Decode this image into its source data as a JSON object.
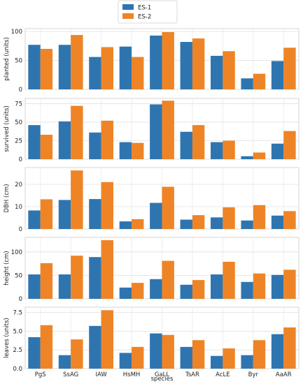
{
  "chart_data": {
    "type": "bar",
    "xlabel": "species",
    "categories": [
      "PgS",
      "SsAG",
      "IAW",
      "HsMH",
      "GaLL",
      "TsAR",
      "AcLE",
      "Byr",
      "AaAR"
    ],
    "legend": {
      "placement": "top-center",
      "entries": [
        {
          "name": "ES-1",
          "color": "#2e75b0"
        },
        {
          "name": "ES-2",
          "color": "#ee8426"
        }
      ]
    },
    "grid": true,
    "panels": [
      {
        "ylabel": "planted (units)",
        "ylim": [
          0,
          105
        ],
        "yticks": [
          0,
          50,
          100
        ],
        "yticklabels": [
          "0",
          "50",
          "100"
        ],
        "series": [
          {
            "name": "ES-1",
            "values": [
              77,
              77,
              56,
              74,
              93,
              82,
              58,
              19,
              49
            ]
          },
          {
            "name": "ES-2",
            "values": [
              70,
              94,
              73,
              56,
              99,
              88,
              66,
              27,
              72
            ]
          }
        ]
      },
      {
        "ylabel": "survived (units)",
        "ylim": [
          0,
          82
        ],
        "yticks": [
          0,
          25,
          50,
          75
        ],
        "yticklabels": [
          "0",
          "25",
          "50",
          "75"
        ],
        "series": [
          {
            "name": "ES-1",
            "values": [
              46,
              51,
              36,
              23,
              74,
              37,
              23,
              4,
              21
            ]
          },
          {
            "name": "ES-2",
            "values": [
              33,
              72,
              52,
              22,
              79,
              46,
              25,
              9,
              38
            ]
          }
        ]
      },
      {
        "ylabel": "DBH (cm)",
        "ylim": [
          0,
          27.5
        ],
        "yticks": [
          0,
          10,
          20
        ],
        "yticklabels": [
          "0",
          "10",
          "20"
        ],
        "series": [
          {
            "name": "ES-1",
            "values": [
              8.3,
              13.0,
              13.4,
              3.4,
              11.7,
              4.2,
              5.2,
              3.8,
              6.0
            ]
          },
          {
            "name": "ES-2",
            "values": [
              13.3,
              26.2,
              21.0,
              4.4,
              18.9,
              6.2,
              9.7,
              10.7,
              8.0
            ]
          }
        ]
      },
      {
        "ylabel": "height (cm)",
        "ylim": [
          0,
          131
        ],
        "yticks": [
          0,
          50,
          100
        ],
        "yticklabels": [
          "0",
          "50",
          "100"
        ],
        "series": [
          {
            "name": "ES-1",
            "values": [
              52,
              52,
              89,
              24,
              42,
              30,
              52,
              36,
              51
            ]
          },
          {
            "name": "ES-2",
            "values": [
              76,
              92,
              125,
              34,
              81,
              40,
              79,
              54,
              62
            ]
          }
        ]
      },
      {
        "ylabel": "leaves (units)",
        "ylim": [
          0,
          8.2
        ],
        "yticks": [
          0,
          2.5,
          5,
          7.5
        ],
        "yticklabels": [
          "0.0",
          "2.5",
          "5.0",
          "7.5"
        ],
        "series": [
          {
            "name": "ES-1",
            "values": [
              4.2,
              1.8,
              5.7,
              2.1,
              4.7,
              2.9,
              1.7,
              1.8,
              4.6
            ]
          },
          {
            "name": "ES-2",
            "values": [
              5.8,
              3.9,
              7.8,
              2.9,
              4.5,
              3.8,
              2.7,
              3.8,
              5.5
            ]
          }
        ]
      }
    ]
  }
}
